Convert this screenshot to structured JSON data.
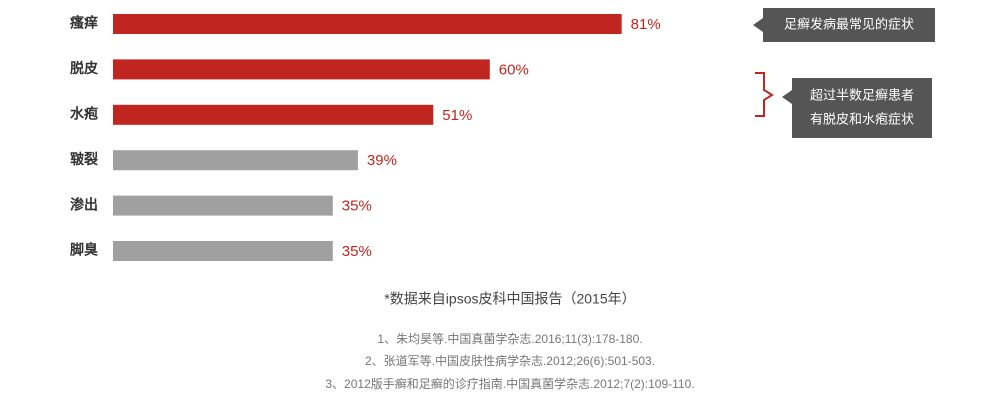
{
  "chart_data": {
    "type": "bar",
    "orientation": "horizontal",
    "categories": [
      "瘙痒",
      "脱皮",
      "水疱",
      "皲裂",
      "渗出",
      "脚臭"
    ],
    "values": [
      81,
      60,
      51,
      39,
      35,
      35
    ],
    "value_labels": [
      "81%",
      "60%",
      "51%",
      "39%",
      "35%",
      "35%"
    ],
    "colors": [
      "#c0261f",
      "#c0261f",
      "#c0261f",
      "#a0a0a0",
      "#a0a0a0",
      "#a0a0a0"
    ],
    "callouts": [
      {
        "lines": [
          "足癣发病最常见的症状"
        ]
      },
      {
        "lines": [
          "超过半数足癣患者",
          "有脱皮和水疱症状"
        ]
      }
    ],
    "note": "*数据来自ipsos皮科中国报告（2015年）",
    "references": [
      "1、朱均昊等.中国真菌学杂志.2016;11(3):178-180.",
      "2、张道军等.中国皮肤性病学杂志.2012;26(6):501-503.",
      "3、2012版手癣和足癣的诊疗指南.中国真菌学杂志.2012;7(2):109-110."
    ]
  }
}
